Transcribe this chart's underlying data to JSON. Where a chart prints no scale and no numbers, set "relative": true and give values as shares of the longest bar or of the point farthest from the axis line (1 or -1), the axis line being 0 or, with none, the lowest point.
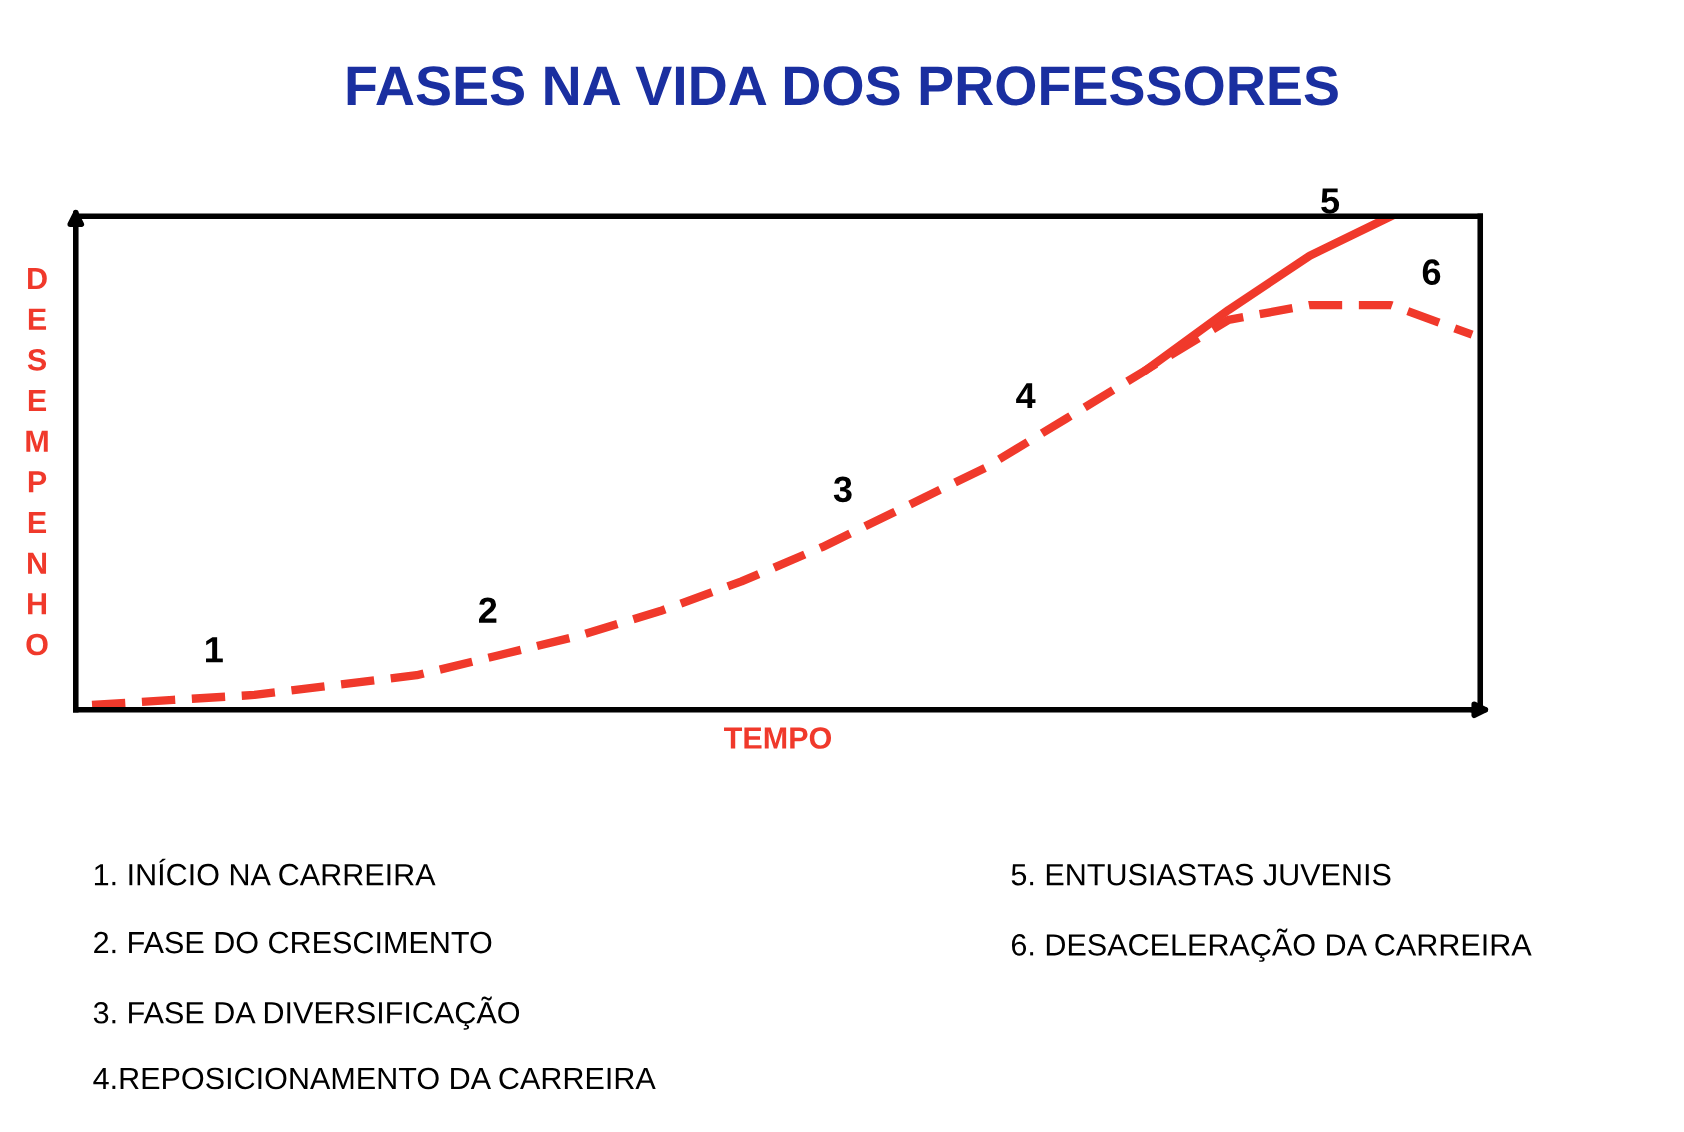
{
  "chart_data": {
    "type": "line",
    "title": "FASES NA VIDA DOS PROFESSORES",
    "xlabel": "TEMPO",
    "ylabel": "DESEMPENHO",
    "relative": true,
    "tick_labels": false,
    "categories": [
      null,
      null,
      null,
      null,
      null,
      null,
      null,
      null,
      null,
      null,
      null,
      null,
      null,
      null,
      null,
      null,
      null,
      null
    ],
    "series": [
      {
        "color": "#f0392b",
        "line_style": "dashed",
        "values": [
          0.01,
          0.02,
          0.03,
          0.05,
          0.07,
          0.11,
          0.15,
          0.2,
          0.26,
          0.33,
          0.41,
          0.49,
          0.59,
          0.69,
          0.79,
          0.82,
          0.82,
          0.76
        ]
      },
      {
        "name": "5",
        "color": "#f0392b",
        "line_style": "solid",
        "values": [
          null,
          null,
          null,
          null,
          null,
          null,
          null,
          null,
          null,
          null,
          null,
          null,
          null,
          0.69,
          0.81,
          0.92,
          1.0,
          null
        ]
      }
    ],
    "annotations": [
      {
        "text": "1",
        "y": 0.025
      },
      {
        "text": "2",
        "y": 0.105
      },
      {
        "text": "3",
        "y": 0.35
      },
      {
        "text": "4",
        "y": 0.54
      },
      {
        "text": "6",
        "y": 0.79
      },
      "1. INÍCIO NA CARREIRA",
      "2. FASE DO CRESCIMENTO",
      "3. FASE DA DIVERSIFICAÇÃO",
      "4.REPOSICIONAMENTO DA CARREIRA",
      "5. ENTUSIASTAS JUVENIS",
      "6. DESACELERAÇÃO DA CARREIRA"
    ]
  }
}
